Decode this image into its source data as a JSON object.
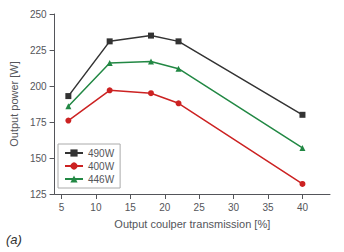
{
  "chart_data": {
    "type": "line",
    "xlabel": "Output coulper transmission [%]",
    "ylabel": "Output power [W]",
    "annotation": "(a)",
    "x": [
      6,
      12,
      18,
      22,
      40
    ],
    "series": [
      {
        "name": "490W",
        "color": "#333333",
        "marker": "square",
        "values": [
          193,
          231,
          235,
          231,
          180
        ]
      },
      {
        "name": "400W",
        "color": "#cc2222",
        "marker": "circle",
        "values": [
          176,
          197,
          195,
          188,
          132
        ]
      },
      {
        "name": "446W",
        "color": "#228844",
        "marker": "triangle",
        "values": [
          186,
          216,
          217,
          212,
          157
        ]
      }
    ],
    "xlim": [
      4,
      44
    ],
    "xticks": [
      5,
      10,
      15,
      20,
      25,
      30,
      35,
      40
    ],
    "ylim": [
      125,
      250
    ],
    "yticks": [
      125,
      150,
      175,
      200,
      225,
      250
    ],
    "grid": false,
    "legend": "lower left"
  }
}
